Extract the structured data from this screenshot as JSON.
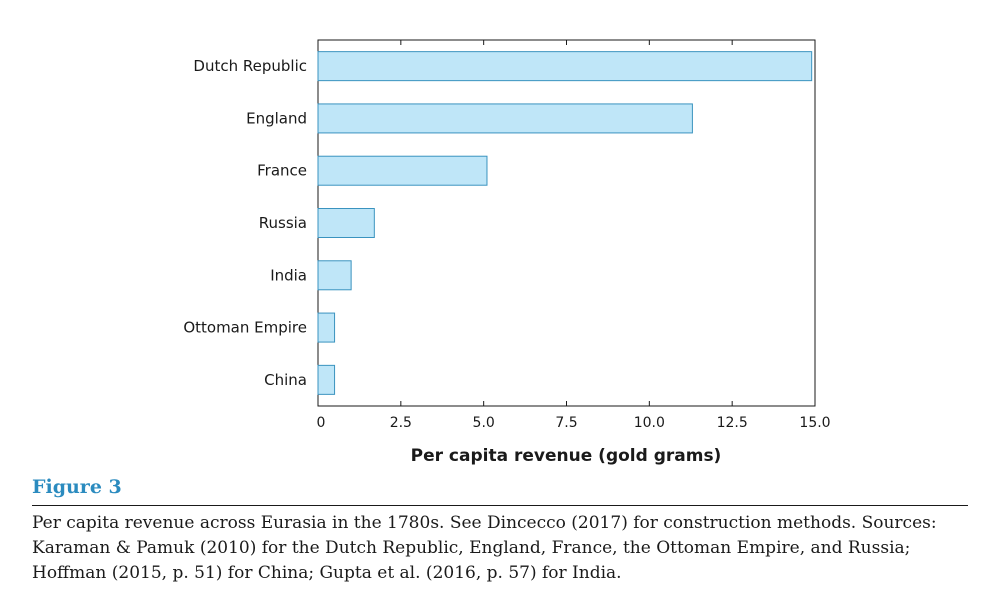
{
  "chart_data": {
    "type": "bar",
    "orientation": "horizontal",
    "categories": [
      "Dutch Republic",
      "England",
      "France",
      "Russia",
      "India",
      "Ottoman Empire",
      "China"
    ],
    "values": [
      14.9,
      11.3,
      5.1,
      1.7,
      1.0,
      0.5,
      0.5
    ],
    "xlabel": "Per capita revenue (gold grams)",
    "ylabel": "",
    "xlim": [
      0,
      15
    ],
    "xticks": [
      "0",
      "2.5",
      "5.0",
      "7.5",
      "10.0",
      "12.5",
      "15.0"
    ],
    "bar_color": "#bfe6f8",
    "bar_edge_color": "#3a93bf",
    "grid": false
  },
  "figure": {
    "label": "Figure 3",
    "label_color": "#2b8bbf",
    "caption_lines": [
      "Per capita revenue across Eurasia in the 1780s. See Dincecco (2017) for construction methods. Sources:",
      "Karaman & Pamuk (2010) for the Dutch Republic, England, France, the Ottoman Empire, and Russia;",
      "Hoffman (2015, p. 51) for China; Gupta et al. (2016, p. 57) for India."
    ]
  }
}
